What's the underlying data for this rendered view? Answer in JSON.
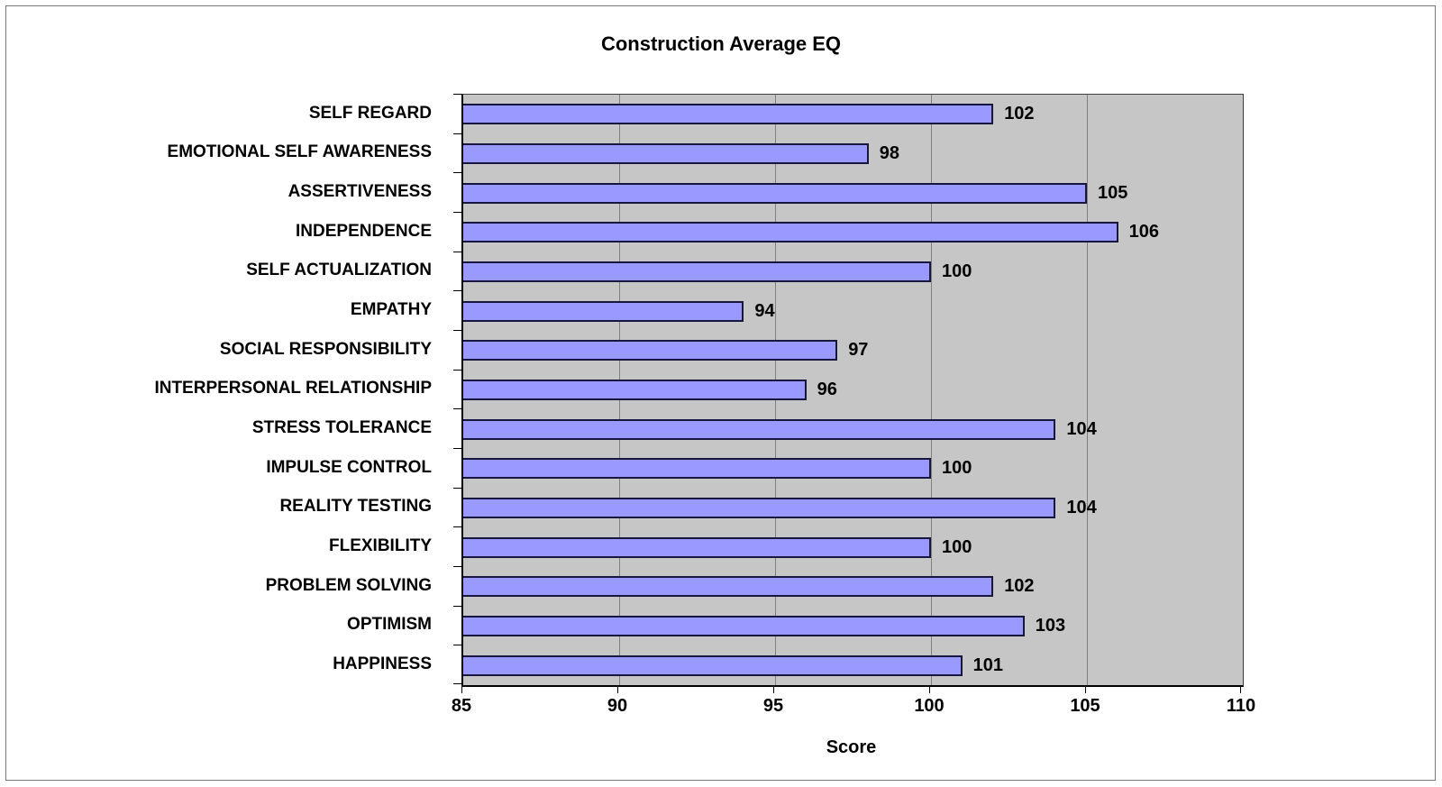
{
  "window": {
    "background": "#ffffff",
    "frame_border": "#7a7a7a"
  },
  "chart_data": {
    "type": "bar",
    "orientation": "horizontal",
    "title": "Construction Average EQ",
    "xlabel": "Score",
    "categories": [
      "SELF REGARD",
      "EMOTIONAL SELF AWARENESS",
      "ASSERTIVENESS",
      "INDEPENDENCE",
      "SELF ACTUALIZATION",
      "EMPATHY",
      "SOCIAL RESPONSIBILITY",
      "INTERPERSONAL RELATIONSHIP",
      "STRESS TOLERANCE",
      "IMPULSE CONTROL",
      "REALITY TESTING",
      "FLEXIBILITY",
      "PROBLEM SOLVING",
      "OPTIMISM",
      "HAPPINESS"
    ],
    "values": [
      102,
      98,
      105,
      106,
      100,
      94,
      97,
      96,
      104,
      100,
      104,
      100,
      102,
      103,
      101
    ],
    "data_labels": true,
    "xlim": [
      85,
      110
    ],
    "xticks": [
      85,
      90,
      95,
      100,
      105,
      110
    ],
    "gridlines": [
      90,
      95,
      100,
      105
    ],
    "grid": true,
    "legend": "none",
    "colors": {
      "bar_fill": "#9999ff",
      "bar_border": "#16163f",
      "plot_background": "#c6c6c6",
      "gridline": "#808080",
      "axis": "#000000",
      "text": "#000000"
    }
  }
}
